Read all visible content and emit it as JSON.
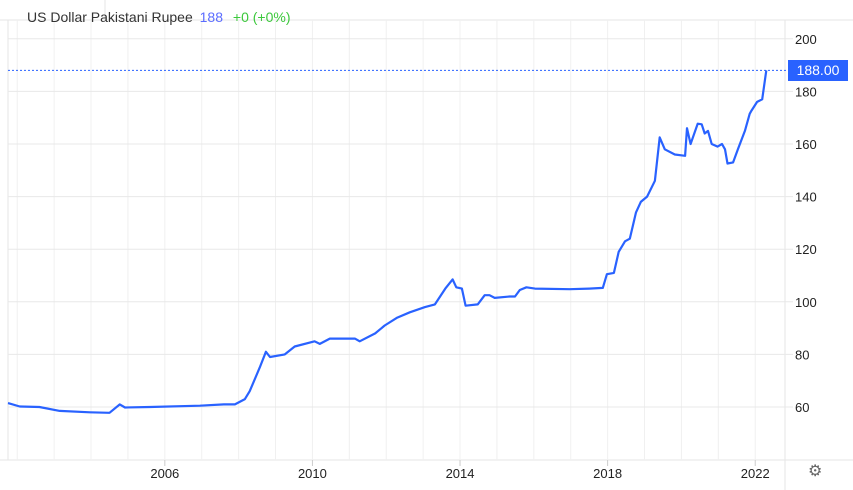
{
  "chart_data": {
    "type": "line",
    "title": "US Dollar Pakistani Rupee",
    "price": "188",
    "change": "+0 (+0%)",
    "last_value_label": "188.00",
    "xlabel": "",
    "ylabel": "",
    "xlim": [
      2001.75,
      2022.95
    ],
    "ylim": [
      44,
      206
    ],
    "y_ticks": [
      60,
      80,
      100,
      120,
      140,
      160,
      180,
      200
    ],
    "x_ticks": [
      "2006",
      "2010",
      "2014",
      "2018",
      "2022"
    ],
    "x_tick_values": [
      2006,
      2010,
      2014,
      2018,
      2022
    ],
    "grid": true,
    "line_color": "#2962ff",
    "series": [
      {
        "x": [
          2001.75,
          2002.07,
          2002.6,
          2003.15,
          2003.97,
          2004.5,
          2004.78,
          2004.92,
          2005.6,
          2006.95,
          2007.6,
          2007.9,
          2008.17,
          2008.3,
          2008.57,
          2008.74,
          2008.85,
          2009.25,
          2009.52,
          2010.06,
          2010.2,
          2010.47,
          2010.74,
          2011.15,
          2011.28,
          2011.7,
          2011.96,
          2012.3,
          2012.64,
          2013.05,
          2013.32,
          2013.6,
          2013.8,
          2013.9,
          2014.05,
          2014.15,
          2014.48,
          2014.67,
          2014.8,
          2014.94,
          2015.35,
          2015.49,
          2015.62,
          2015.8,
          2016.03,
          2016.97,
          2017.5,
          2017.87,
          2017.98,
          2018.17,
          2018.3,
          2018.47,
          2018.6,
          2018.77,
          2018.9,
          2019.07,
          2019.28,
          2019.41,
          2019.55,
          2019.82,
          2020.1,
          2020.15,
          2020.25,
          2020.44,
          2020.55,
          2020.63,
          2020.72,
          2020.82,
          2020.98,
          2021.1,
          2021.18,
          2021.25,
          2021.4,
          2021.53,
          2021.72,
          2021.85,
          2021.9,
          2022.05,
          2022.19,
          2022.3
        ],
        "y": [
          61.5,
          60.2,
          60,
          58.5,
          58,
          57.8,
          61,
          59.8,
          60,
          60.5,
          61,
          61,
          63,
          66,
          75,
          81,
          79,
          80,
          83,
          85,
          84,
          86,
          86,
          86,
          85,
          88,
          91,
          94,
          96,
          98,
          99,
          105,
          108.5,
          105.5,
          105,
          98.5,
          99,
          102.5,
          102.5,
          101.5,
          102,
          102,
          104.5,
          105.5,
          105,
          104.8,
          105,
          105.3,
          110.5,
          111,
          119,
          123,
          124,
          134,
          138,
          140,
          146,
          162.5,
          158,
          156,
          155.5,
          166,
          160,
          167.7,
          167.5,
          164,
          165,
          160,
          159,
          160,
          158,
          152.6,
          153,
          158,
          165,
          171.5,
          172.7,
          176,
          177,
          188
        ]
      }
    ]
  },
  "settings_icon": "gear-icon"
}
